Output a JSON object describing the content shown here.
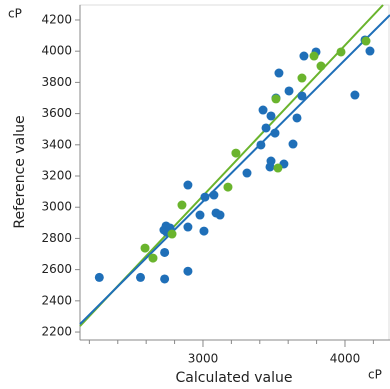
{
  "chart_data": {
    "type": "scatter",
    "y_unit": "cP",
    "x_unit": "cP",
    "x_label": "Calculated value",
    "y_label": "Reference value",
    "xlim": [
      2134,
      4317
    ],
    "ylim": [
      2149,
      4296
    ],
    "xticks": [
      3000,
      4000
    ],
    "xminorticks": [
      2200,
      2400,
      2600,
      2800,
      3200,
      3400,
      3600,
      3800,
      4200
    ],
    "yticks": [
      2200,
      2400,
      2600,
      2800,
      3000,
      3200,
      3400,
      3600,
      3800,
      4000,
      4200
    ],
    "series": [
      {
        "color": "#1f6fb8",
        "x": [
          2270,
          2560,
          2730,
          2730,
          2725,
          2740,
          2745,
          2768,
          2894,
          2894,
          2894,
          2979,
          3007,
          3014,
          3077,
          3092,
          3120,
          3310,
          3408,
          3423,
          3444,
          3479,
          3472,
          3479,
          3507,
          3514,
          3535,
          3570,
          3606,
          3634,
          3662,
          3697,
          3711,
          3796,
          4070,
          4176,
          4141
        ],
        "values": [
          2550,
          2550,
          2710,
          2540,
          2854,
          2880,
          2840,
          2867,
          3142,
          2590,
          2873,
          2950,
          2847,
          3065,
          3078,
          2963,
          2950,
          3219,
          3399,
          3623,
          3508,
          3296,
          3258,
          3585,
          3475,
          3700,
          3860,
          3277,
          3745,
          3405,
          3572,
          3713,
          3969,
          3995,
          3719,
          4001,
          4072
        ]
      },
      {
        "color": "#6ab42d",
        "x": [
          2592,
          2648,
          2782,
          2852,
          3176,
          3232,
          3514,
          3528,
          3697,
          3782,
          3831,
          3972,
          4148
        ],
        "values": [
          2738,
          2674,
          2828,
          3014,
          3129,
          3347,
          3694,
          3251,
          3828,
          3969,
          3905,
          3995,
          4065
        ]
      }
    ],
    "fit_lines": [
      {
        "color": "#6ab42d",
        "x": [
          2134,
          4268
        ],
        "values": [
          2238,
          4296
        ]
      },
      {
        "color": "#1f6fb8",
        "x": [
          2134,
          4317
        ],
        "values": [
          2251,
          4232
        ]
      }
    ]
  }
}
